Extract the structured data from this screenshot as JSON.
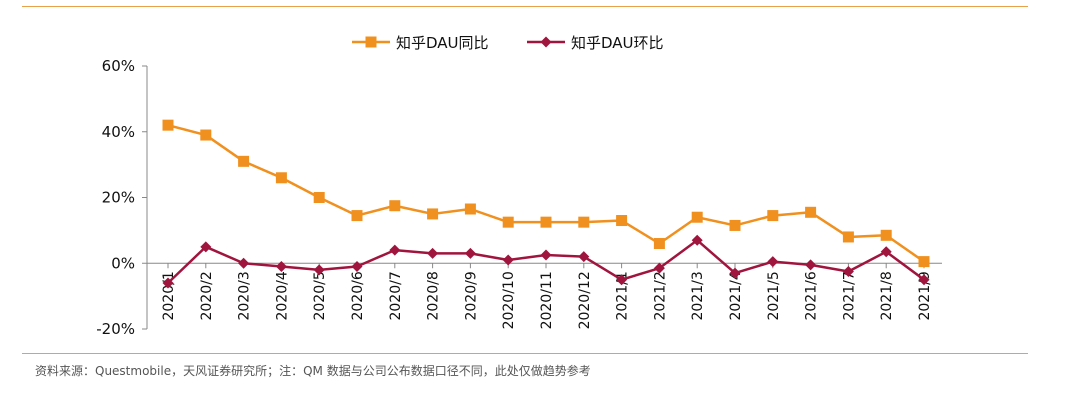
{
  "chart_data": {
    "type": "line",
    "categories": [
      "2020/1",
      "2020/2",
      "2020/3",
      "2020/4",
      "2020/5",
      "2020/6",
      "2020/7",
      "2020/8",
      "2020/9",
      "2020/10",
      "2020/11",
      "2020/12",
      "2021/1",
      "2021/2",
      "2021/3",
      "2021/4",
      "2021/5",
      "2021/6",
      "2021/7",
      "2021/8",
      "2021/9"
    ],
    "series": [
      {
        "name": "知乎DAU同比",
        "color": "#f0901e",
        "marker": "square",
        "values": [
          42,
          39,
          31,
          26,
          20,
          14.5,
          17.5,
          15,
          16.5,
          12.5,
          12.5,
          12.5,
          13,
          6,
          14,
          11.5,
          14.5,
          15.5,
          8,
          8.5,
          0.5
        ]
      },
      {
        "name": "知乎DAU环比",
        "color": "#a0153e",
        "marker": "diamond",
        "values": [
          -6,
          5,
          0,
          -1,
          -2,
          -1,
          4,
          3,
          3,
          1,
          2.5,
          2,
          -5,
          -1.5,
          7,
          -3,
          0.5,
          -0.5,
          -2.5,
          3.5,
          -5
        ]
      }
    ],
    "ylim": [
      -20,
      60
    ],
    "yticks": [
      -20,
      0,
      20,
      40,
      60
    ],
    "ytick_labels": [
      "-20%",
      "0%",
      "20%",
      "40%",
      "60%"
    ],
    "legend_position": "top-center",
    "grid": false
  },
  "source_note": "资料来源：Questmobile，天风证券研究所；注：QM 数据与公司公布数据口径不同，此处仅做趋势参考"
}
